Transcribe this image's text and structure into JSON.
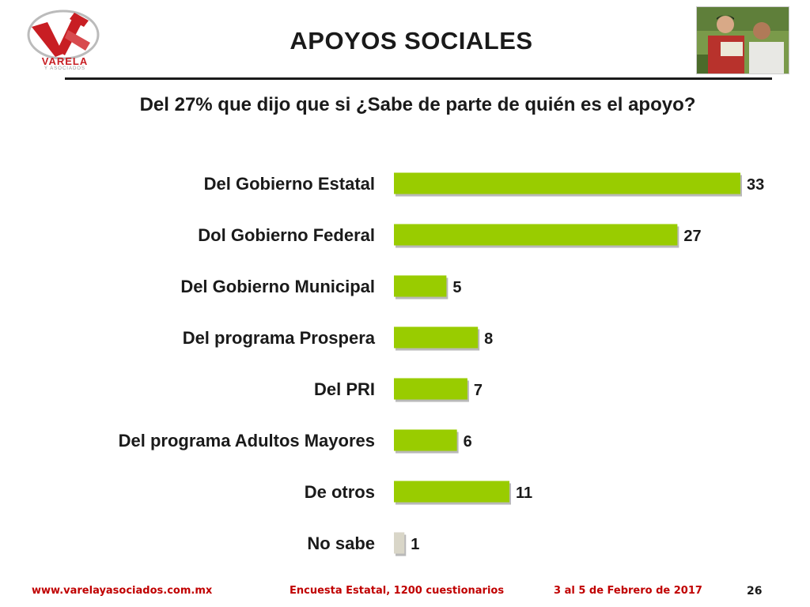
{
  "header": {
    "title": "APOYOS SOCIALES",
    "logo_text": "VARELA",
    "logo_subtext": "Y ASOCIADOS"
  },
  "subtitle": "Del 27% que dijo que si ¿Sabe de parte de quién es el apoyo?",
  "colors": {
    "bar": "#99cc00",
    "bar_other": "#d9d6c8",
    "accent": "#c81e23",
    "footer": "#c00000"
  },
  "chart_data": {
    "type": "bar",
    "orientation": "horizontal",
    "categories": [
      "Del Gobierno Estatal",
      "Dol Gobierno Federal",
      "Del Gobierno Municipal",
      "Del programa Prospera",
      "Del PRI",
      "Del programa Adultos Mayores",
      "De otros",
      "No sabe"
    ],
    "values": [
      33,
      27,
      5,
      8,
      7,
      6,
      11,
      1
    ],
    "title": "Del 27% que dijo que si ¿Sabe de parte de quién es el apoyo?",
    "xlabel": "",
    "ylabel": "",
    "xlim": [
      0,
      33
    ],
    "grid": false,
    "legend": "none",
    "data_labels": true
  },
  "footer": {
    "url": "www.varelayasociados.com.mx",
    "survey": "Encuesta Estatal, 1200 cuestionarios",
    "date": "3 al 5 de Febrero de 2017",
    "page_number": "26"
  }
}
